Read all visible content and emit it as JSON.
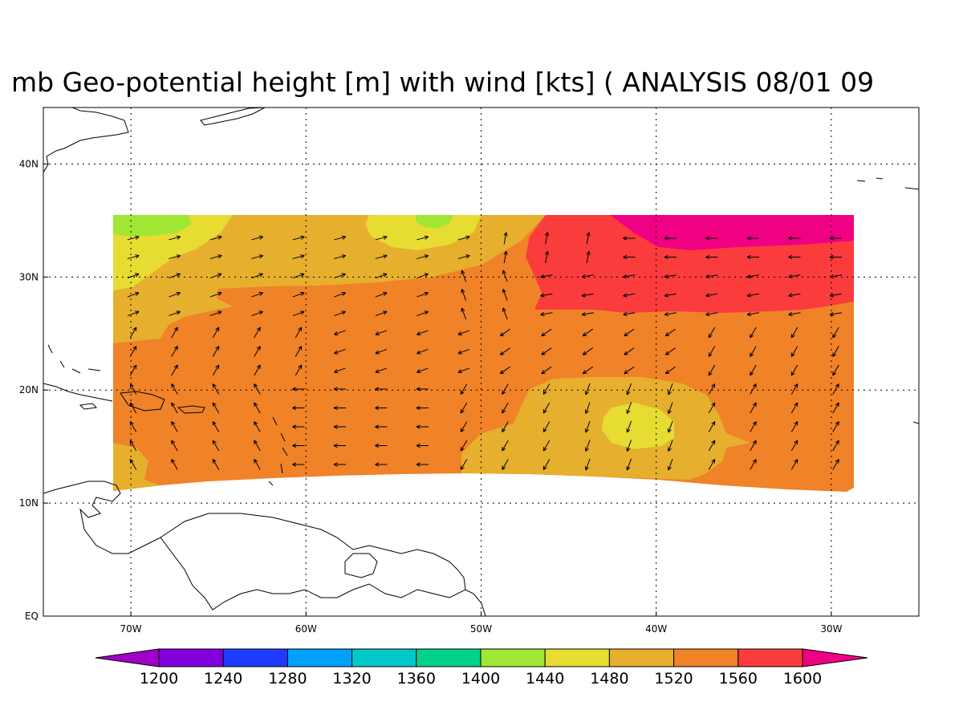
{
  "title": "mb Geo-potential height [m] with wind [kts] ( ANALYSIS 08/01 09",
  "axes": {
    "lon_min": -75,
    "lon_max": -25,
    "lat_min": 0,
    "lat_max": 45,
    "x_ticks": [
      {
        "value": -70,
        "label": "70W"
      },
      {
        "value": -60,
        "label": "60W"
      },
      {
        "value": -50,
        "label": "50W"
      },
      {
        "value": -40,
        "label": "40W"
      },
      {
        "value": -30,
        "label": "30W"
      }
    ],
    "y_ticks": [
      {
        "value": 0,
        "label": "EQ"
      },
      {
        "value": 10,
        "label": "10N"
      },
      {
        "value": 20,
        "label": "20N"
      },
      {
        "value": 30,
        "label": "30N"
      },
      {
        "value": 40,
        "label": "40N"
      }
    ],
    "grid": "dotted"
  },
  "colorbar": {
    "levels": [
      {
        "label": "1200",
        "color": "#8200dc"
      },
      {
        "label": "1240",
        "color": "#1e3cff"
      },
      {
        "label": "1280",
        "color": "#00a0ff"
      },
      {
        "label": "1320",
        "color": "#00c8c8"
      },
      {
        "label": "1360",
        "color": "#00d28c"
      },
      {
        "label": "1400",
        "color": "#a0e632"
      },
      {
        "label": "1440",
        "color": "#e6dc32"
      },
      {
        "label": "1480",
        "color": "#e6af2d"
      },
      {
        "label": "1520",
        "color": "#f08228"
      },
      {
        "label": "1560",
        "color": "#fa3c3c"
      },
      {
        "label": "1600",
        "color": ""
      }
    ],
    "low_color": "#a000c8",
    "high_color": "#f00082"
  },
  "chart_data": {
    "type": "heatmap",
    "variable": "Geo-potential height [m]",
    "overlay": "wind vectors [kts]",
    "domain": {
      "lon": [
        -71,
        -29
      ],
      "lat_south_approx": 11,
      "lat_north": 35.5
    },
    "regions": [
      {
        "range": "1440-1480",
        "areas": [
          "west edge 28-35N",
          "52-57W 31-35N",
          "40-43W 15-18N"
        ]
      },
      {
        "range": "1400-1440",
        "areas": [
          "70-67W 34-35N",
          "55-52W 34-35N"
        ]
      },
      {
        "range": "1480-1520",
        "areas": [
          "north-west quadrant 26-35N",
          "south-central 11-21N 50-36W"
        ]
      },
      {
        "range": "1520-1560",
        "areas": [
          "central and southern domain"
        ]
      },
      {
        "range": "1560-1600",
        "areas": [
          "north-east 27-35N east of 47W"
        ]
      },
      {
        "range": ">1600",
        "areas": [
          "north-east corner 33-35N 42-29W"
        ]
      }
    ]
  }
}
